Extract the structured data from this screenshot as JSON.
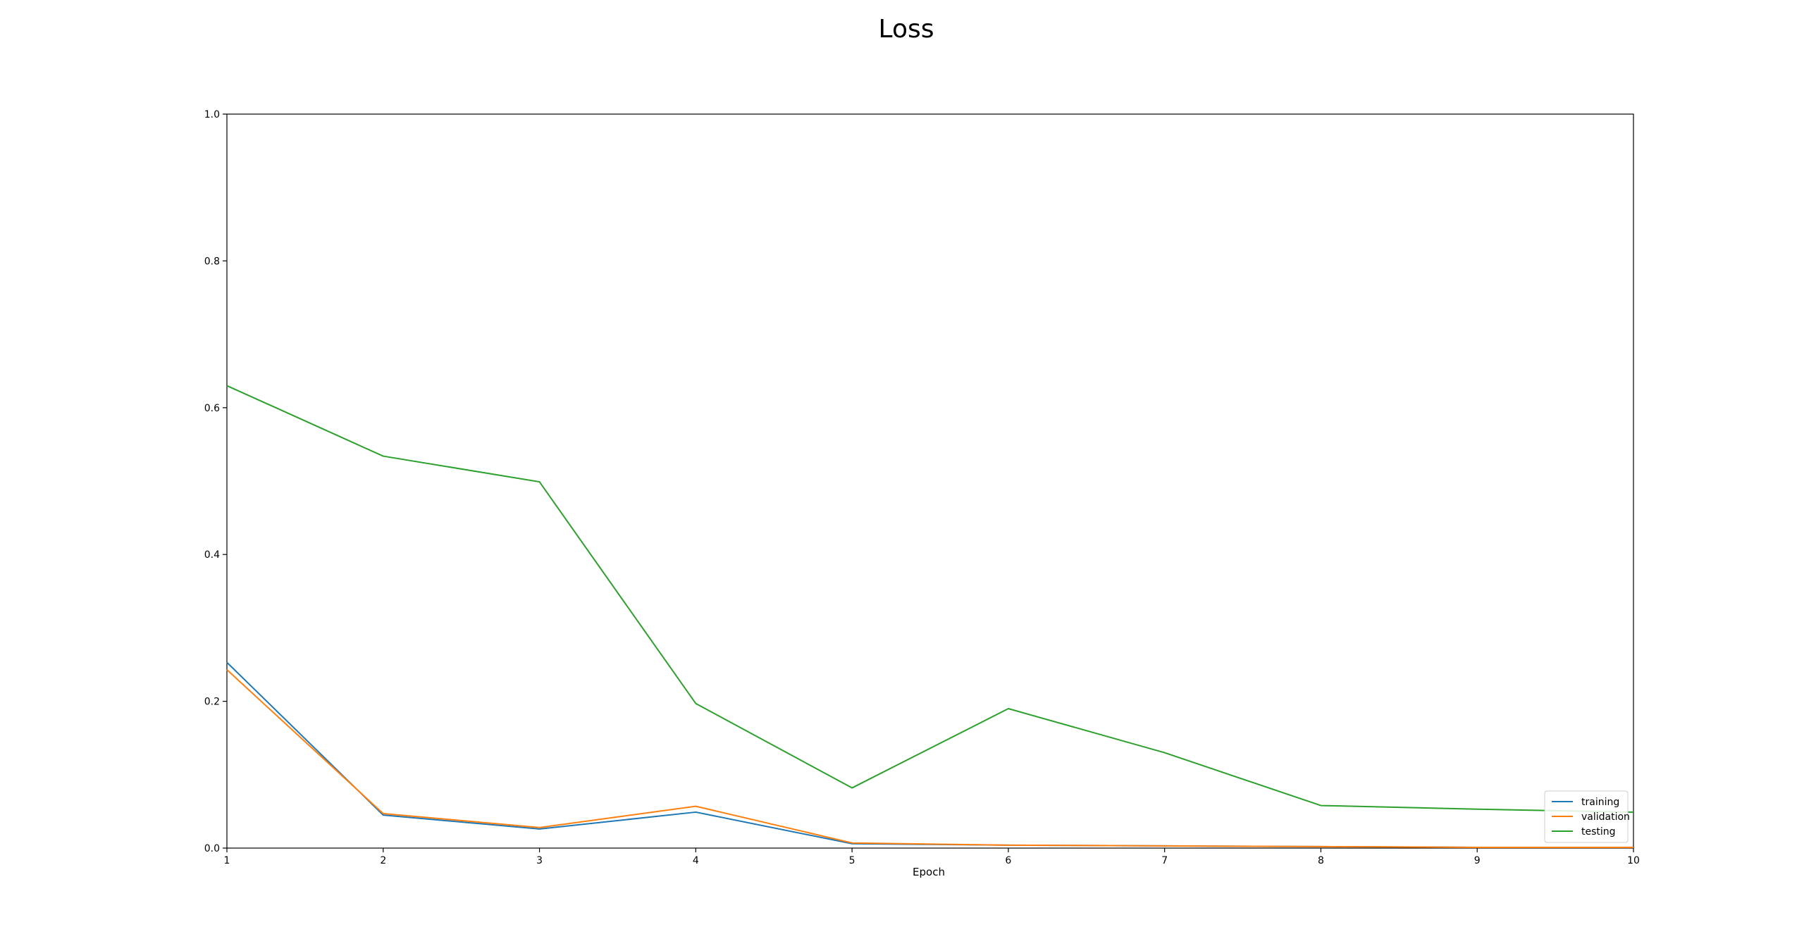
{
  "chart_data": {
    "type": "line",
    "title": "Loss",
    "xlabel": "Epoch",
    "ylabel": "",
    "xlim": [
      1,
      10
    ],
    "ylim": [
      0,
      1.0
    ],
    "x": [
      1,
      2,
      3,
      4,
      5,
      6,
      7,
      8,
      9,
      10
    ],
    "xticks": [
      "1",
      "2",
      "3",
      "4",
      "5",
      "6",
      "7",
      "8",
      "9",
      "10"
    ],
    "yticks": [
      "0.0",
      "0.2",
      "0.4",
      "0.6",
      "0.8",
      "1.0"
    ],
    "grid": false,
    "legend_position": "bottom-right",
    "series": [
      {
        "name": "training",
        "color": "#1f77b4",
        "values": [
          0.253,
          0.045,
          0.026,
          0.049,
          0.006,
          0.004,
          0.003,
          0.002,
          0.001,
          0.001
        ]
      },
      {
        "name": "validation",
        "color": "#ff7f0e",
        "values": [
          0.243,
          0.047,
          0.028,
          0.057,
          0.007,
          0.004,
          0.003,
          0.002,
          0.001,
          0.001
        ]
      },
      {
        "name": "testing",
        "color": "#2ca02c",
        "values": [
          0.63,
          0.534,
          0.499,
          0.197,
          0.082,
          0.19,
          0.13,
          0.058,
          0.053,
          0.049
        ]
      }
    ]
  }
}
